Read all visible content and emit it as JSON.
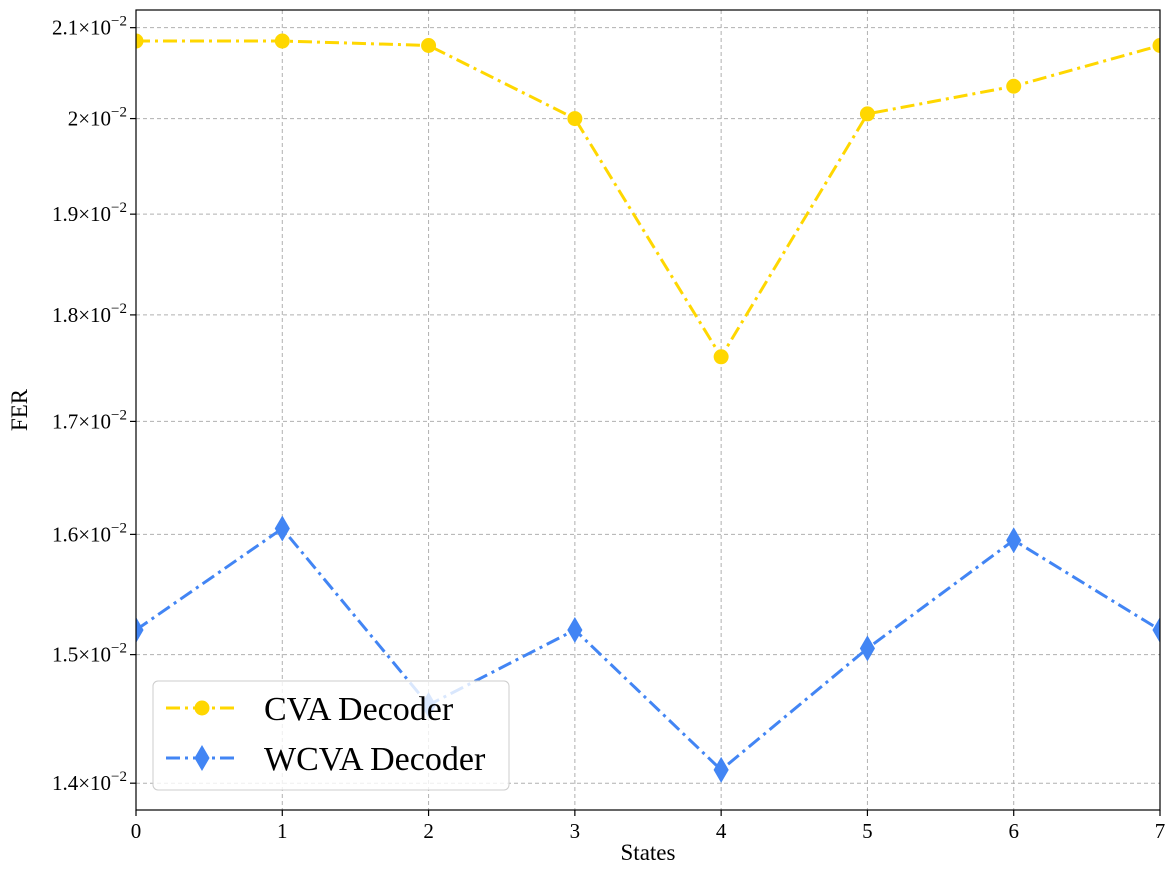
{
  "chart_data": {
    "type": "line",
    "xlabel": "States",
    "ylabel": "FER",
    "x": [
      0,
      1,
      2,
      3,
      4,
      5,
      6,
      7
    ],
    "xticks": [
      "0",
      "1",
      "2",
      "3",
      "4",
      "5",
      "6",
      "7"
    ],
    "xlim": [
      0,
      7
    ],
    "yscale": "log",
    "ylim": [
      0.0138,
      0.0212
    ],
    "yticks": [
      {
        "value": 0.021,
        "mantissa": "2.1",
        "exponent": "−2"
      },
      {
        "value": 0.02,
        "mantissa": "2",
        "exponent": "−2"
      },
      {
        "value": 0.019,
        "mantissa": "1.9",
        "exponent": "−2"
      },
      {
        "value": 0.018,
        "mantissa": "1.8",
        "exponent": "−2"
      },
      {
        "value": 0.017,
        "mantissa": "1.7",
        "exponent": "−2"
      },
      {
        "value": 0.016,
        "mantissa": "1.6",
        "exponent": "−2"
      },
      {
        "value": 0.015,
        "mantissa": "1.5",
        "exponent": "−2"
      },
      {
        "value": 0.014,
        "mantissa": "1.4",
        "exponent": "−2"
      }
    ],
    "grid": true,
    "legend_position": "lower-left",
    "series": [
      {
        "name": "CVA Decoder",
        "color": "#FFD700",
        "marker": "circle",
        "linestyle": "dash-dot",
        "values": [
          0.02085,
          0.02085,
          0.0208,
          0.02,
          0.0176,
          0.02005,
          0.02035,
          0.0208
        ]
      },
      {
        "name": "WCVA Decoder",
        "color": "#4285F4",
        "marker": "thin-diamond",
        "linestyle": "dash-dot",
        "values": [
          0.0152,
          0.01605,
          0.0146,
          0.0152,
          0.0141,
          0.01505,
          0.01595,
          0.0152
        ]
      }
    ]
  }
}
